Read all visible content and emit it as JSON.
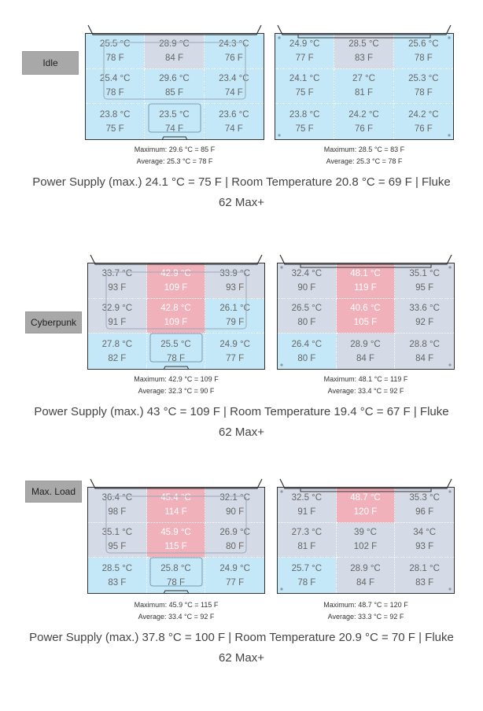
{
  "sections": [
    {
      "label": "Idle",
      "left": {
        "cells": [
          {
            "c": "25.5 °C",
            "f": "78 F",
            "tone": "blue"
          },
          {
            "c": "28.9 °C",
            "f": "84 F",
            "tone": "gray"
          },
          {
            "c": "24.3 °C",
            "f": "76 F",
            "tone": "blue"
          },
          {
            "c": "25.4 °C",
            "f": "78 F",
            "tone": "blue"
          },
          {
            "c": "29.6 °C",
            "f": "85 F",
            "tone": "blue"
          },
          {
            "c": "23.4 °C",
            "f": "74 F",
            "tone": "blue"
          },
          {
            "c": "23.8 °C",
            "f": "75 F",
            "tone": "blue"
          },
          {
            "c": "23.5 °C",
            "f": "74 F",
            "tone": "blue"
          },
          {
            "c": "23.6 °C",
            "f": "74 F",
            "tone": "blue"
          }
        ],
        "max": "Maximum: 29.6 °C = 85 F",
        "avg": "Average: 25.3 °C = 78 F"
      },
      "right": {
        "cells": [
          {
            "c": "24.9 °C",
            "f": "77 F",
            "tone": "blue"
          },
          {
            "c": "28.5 °C",
            "f": "83 F",
            "tone": "gray"
          },
          {
            "c": "25.6 °C",
            "f": "78 F",
            "tone": "blue"
          },
          {
            "c": "24.1 °C",
            "f": "75 F",
            "tone": "blue"
          },
          {
            "c": "27 °C",
            "f": "81 F",
            "tone": "blue"
          },
          {
            "c": "25.3 °C",
            "f": "78 F",
            "tone": "blue"
          },
          {
            "c": "23.8 °C",
            "f": "75 F",
            "tone": "blue"
          },
          {
            "c": "24.2 °C",
            "f": "76 F",
            "tone": "blue"
          },
          {
            "c": "24.2 °C",
            "f": "76 F",
            "tone": "blue"
          }
        ],
        "max": "Maximum: 28.5 °C = 83 F",
        "avg": "Average: 25.3 °C = 78 F"
      },
      "power": "Power Supply (max.)  24.1 °C = 75 F | Room Temperature 20.8 °C = 69 F | Fluke",
      "power2": "62 Max+"
    },
    {
      "label": "Cyberpunk",
      "left": {
        "cells": [
          {
            "c": "33.7 °C",
            "f": "93 F",
            "tone": "gray"
          },
          {
            "c": "42.9 °C",
            "f": "109 F",
            "tone": "red"
          },
          {
            "c": "33.9 °C",
            "f": "93 F",
            "tone": "gray"
          },
          {
            "c": "32.9 °C",
            "f": "91 F",
            "tone": "gray"
          },
          {
            "c": "42.8 °C",
            "f": "109 F",
            "tone": "red"
          },
          {
            "c": "26.1 °C",
            "f": "79 F",
            "tone": "blue"
          },
          {
            "c": "27.8 °C",
            "f": "82 F",
            "tone": "blue"
          },
          {
            "c": "25.5 °C",
            "f": "78 F",
            "tone": "blue"
          },
          {
            "c": "24.9 °C",
            "f": "77 F",
            "tone": "blue"
          }
        ],
        "max": "Maximum: 42.9 °C = 109 F",
        "avg": "Average: 32.3 °C = 90 F"
      },
      "right": {
        "cells": [
          {
            "c": "32.4 °C",
            "f": "90 F",
            "tone": "gray"
          },
          {
            "c": "48.1 °C",
            "f": "119 F",
            "tone": "red"
          },
          {
            "c": "35.1 °C",
            "f": "95 F",
            "tone": "gray"
          },
          {
            "c": "26.5 °C",
            "f": "80 F",
            "tone": "gray"
          },
          {
            "c": "40.6 °C",
            "f": "105 F",
            "tone": "red"
          },
          {
            "c": "33.6 °C",
            "f": "92 F",
            "tone": "gray"
          },
          {
            "c": "26.4 °C",
            "f": "80 F",
            "tone": "blue"
          },
          {
            "c": "28.9 °C",
            "f": "84 F",
            "tone": "gray"
          },
          {
            "c": "28.8 °C",
            "f": "84 F",
            "tone": "gray"
          }
        ],
        "max": "Maximum: 48.1 °C = 119 F",
        "avg": "Average: 33.4 °C = 92 F"
      },
      "power": "Power Supply (max.)  43 °C = 109 F | Room Temperature 19.4 °C = 67 F | Fluke",
      "power2": "62 Max+"
    },
    {
      "label": "Max. Load",
      "left": {
        "cells": [
          {
            "c": "36.4 °C",
            "f": "98 F",
            "tone": "gray"
          },
          {
            "c": "45.4 °C",
            "f": "114 F",
            "tone": "red"
          },
          {
            "c": "32.1 °C",
            "f": "90 F",
            "tone": "gray"
          },
          {
            "c": "35.1 °C",
            "f": "95 F",
            "tone": "gray"
          },
          {
            "c": "45.9 °C",
            "f": "115 F",
            "tone": "red"
          },
          {
            "c": "26.9 °C",
            "f": "80 F",
            "tone": "gray"
          },
          {
            "c": "28.5 °C",
            "f": "83 F",
            "tone": "blue"
          },
          {
            "c": "25.8 °C",
            "f": "78 F",
            "tone": "blue"
          },
          {
            "c": "24.9 °C",
            "f": "77 F",
            "tone": "blue"
          }
        ],
        "max": "Maximum: 45.9 °C = 115 F",
        "avg": "Average: 33.4 °C = 92 F"
      },
      "right": {
        "cells": [
          {
            "c": "32.5 °C",
            "f": "91 F",
            "tone": "gray"
          },
          {
            "c": "48.7 °C",
            "f": "120 F",
            "tone": "red"
          },
          {
            "c": "35.3 °C",
            "f": "96 F",
            "tone": "gray"
          },
          {
            "c": "27.3 °C",
            "f": "81 F",
            "tone": "gray"
          },
          {
            "c": "39 °C",
            "f": "102 F",
            "tone": "gray"
          },
          {
            "c": "34 °C",
            "f": "93 F",
            "tone": "gray"
          },
          {
            "c": "25.7 °C",
            "f": "78 F",
            "tone": "blue"
          },
          {
            "c": "28.9 °C",
            "f": "84 F",
            "tone": "gray"
          },
          {
            "c": "28.1 °C",
            "f": "83 F",
            "tone": "gray"
          }
        ],
        "max": "Maximum: 48.7 °C = 120 F",
        "avg": "Average: 33.3 °C = 92 F"
      },
      "power": "Power Supply (max.)  37.8 °C = 100 F | Room Temperature 20.9 °C = 70 F | Fluke",
      "power2": "62 Max+"
    }
  ]
}
